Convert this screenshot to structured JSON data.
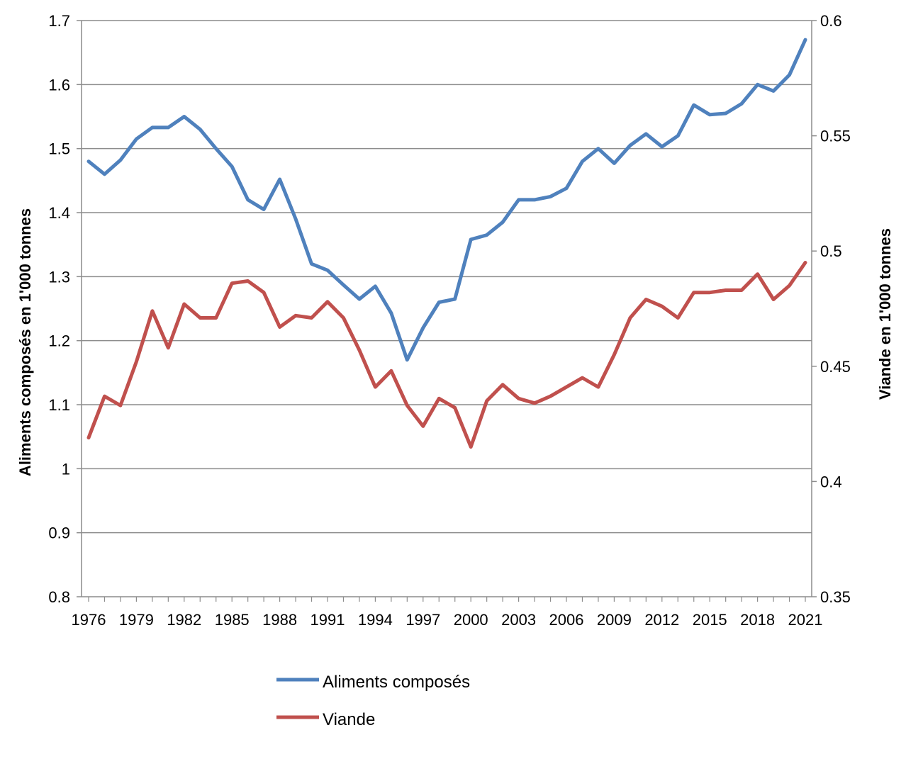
{
  "chart_data": {
    "type": "line",
    "x": [
      1976,
      1977,
      1978,
      1979,
      1980,
      1981,
      1982,
      1983,
      1984,
      1985,
      1986,
      1987,
      1988,
      1989,
      1990,
      1991,
      1992,
      1993,
      1994,
      1995,
      1996,
      1997,
      1998,
      1999,
      2000,
      2001,
      2002,
      2003,
      2004,
      2005,
      2006,
      2007,
      2008,
      2009,
      2010,
      2011,
      2012,
      2013,
      2014,
      2015,
      2016,
      2017,
      2018,
      2019,
      2020,
      2021
    ],
    "x_tick_labels": [
      "1976",
      "1979",
      "1982",
      "1985",
      "1988",
      "1991",
      "1994",
      "1997",
      "2000",
      "2003",
      "2006",
      "2009",
      "2012",
      "2015",
      "2018",
      "2021"
    ],
    "ylabel": "Aliments composés en 1'000 tonnes",
    "ylim": [
      0.8,
      1.7
    ],
    "y_ticks": [
      "0.8",
      "0.9",
      "1",
      "1.1",
      "1.2",
      "1.3",
      "1.4",
      "1.5",
      "1.6",
      "1.7"
    ],
    "y2label": "Viande en 1'000 tonnes",
    "y2lim": [
      0.35,
      0.6
    ],
    "y2_ticks": [
      "0.35",
      "0.4",
      "0.45",
      "0.5",
      "0.55",
      "0.6"
    ],
    "grid": true,
    "legend_position": "bottom-center",
    "series": [
      {
        "name": "Aliments composés",
        "axis": "left",
        "color": "#4F81BD",
        "values": [
          1.48,
          1.46,
          1.482,
          1.515,
          1.533,
          1.533,
          1.55,
          1.53,
          1.5,
          1.472,
          1.42,
          1.405,
          1.452,
          1.39,
          1.32,
          1.31,
          1.287,
          1.265,
          1.285,
          1.243,
          1.17,
          1.22,
          1.26,
          1.265,
          1.358,
          1.365,
          1.385,
          1.42,
          1.42,
          1.425,
          1.438,
          1.48,
          1.5,
          1.477,
          1.505,
          1.523,
          1.503,
          1.52,
          1.568,
          1.553,
          1.555,
          1.57,
          1.6,
          1.59,
          1.615,
          1.67
        ]
      },
      {
        "name": "Viande",
        "axis": "right",
        "color": "#C0504D",
        "values": [
          0.419,
          0.437,
          0.433,
          0.452,
          0.474,
          0.458,
          0.477,
          0.471,
          0.471,
          0.486,
          0.487,
          0.482,
          0.467,
          0.472,
          0.471,
          0.478,
          0.471,
          0.457,
          0.441,
          0.448,
          0.433,
          0.424,
          0.436,
          0.432,
          0.415,
          0.435,
          0.442,
          0.436,
          0.434,
          0.437,
          0.441,
          0.445,
          0.441,
          0.455,
          0.471,
          0.479,
          0.476,
          0.471,
          0.482,
          0.482,
          0.483,
          0.483,
          0.49,
          0.479,
          0.485,
          0.495
        ]
      }
    ]
  }
}
